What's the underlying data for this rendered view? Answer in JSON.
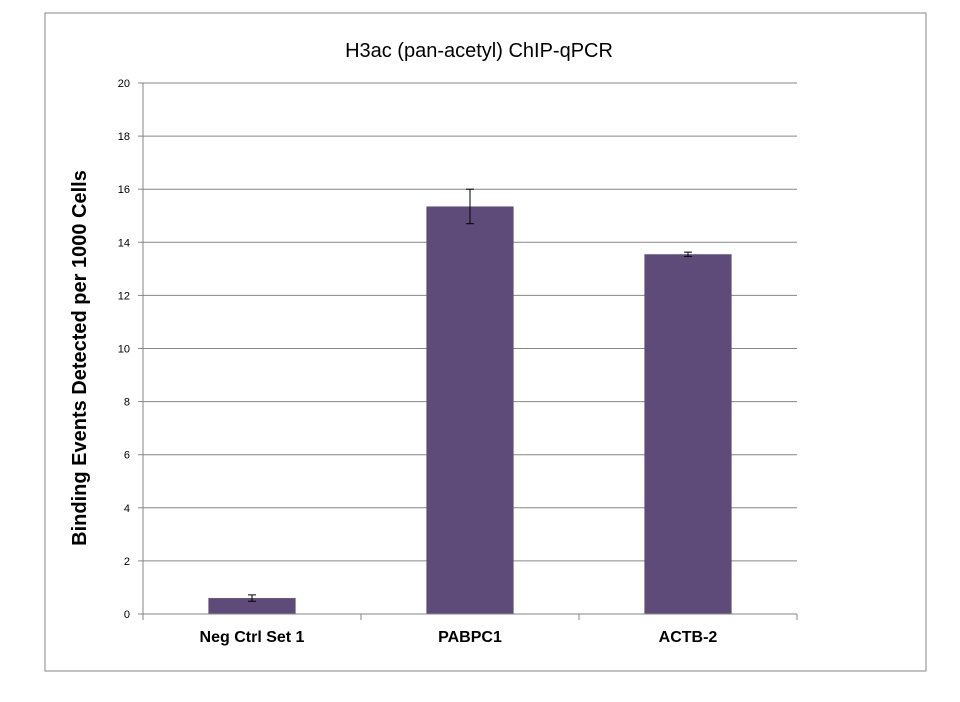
{
  "chart_data": {
    "type": "bar",
    "title": "H3ac (pan-acetyl) ChIP-qPCR",
    "xlabel": "",
    "ylabel": "Binding Events Detected per 1000 Cells",
    "categories": [
      "Neg Ctrl Set 1",
      "PABPC1",
      "ACTB-2"
    ],
    "series": [
      {
        "values": [
          0.6,
          15.35,
          13.55
        ],
        "error": [
          0.12,
          0.65,
          0.08
        ],
        "color": "#5f4b7a"
      }
    ],
    "ylim": [
      0,
      20
    ],
    "yticks": [
      0,
      2,
      4,
      6,
      8,
      10,
      12,
      14,
      16,
      18,
      20
    ],
    "grid": true,
    "legend": "none"
  },
  "colors": {
    "bar": "#5f4b7a",
    "grid": "#868686",
    "frame": "#868686"
  }
}
